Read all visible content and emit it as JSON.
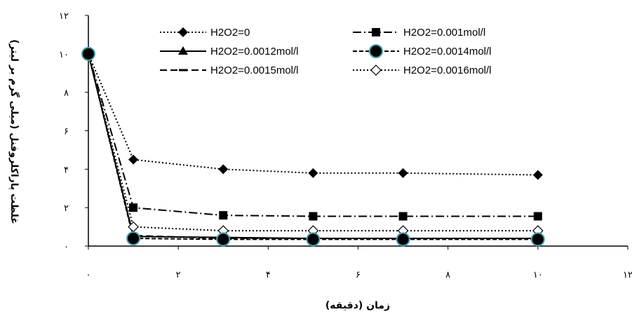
{
  "chart_data": {
    "type": "line",
    "title": "",
    "xlabel": "زمان (دقیقه)",
    "ylabel": "غلظت پاراکلروفنل (میلی گرم بر لیتر)",
    "xlim": [
      0,
      12
    ],
    "ylim": [
      0,
      12
    ],
    "xticks": [
      0,
      2,
      4,
      6,
      8,
      10,
      12
    ],
    "yticks": [
      0,
      2,
      4,
      6,
      8,
      10,
      12
    ],
    "xtick_labels": [
      "۰",
      "۲",
      "۴",
      "۶",
      "۸",
      "۱۰",
      "۱۲"
    ],
    "ytick_labels": [
      "۰",
      "۲",
      "۴",
      "۶",
      "۸",
      "۱۰",
      "۱۲"
    ],
    "grid": false,
    "legend_position": "top",
    "x": [
      0,
      1,
      3,
      5,
      7,
      10
    ],
    "series": [
      {
        "name": "H2O2=0",
        "values": [
          10,
          4.5,
          4.0,
          3.8,
          3.8,
          3.7
        ],
        "color": "#000000",
        "dash": "2 3",
        "marker": "diamond-filled"
      },
      {
        "name": "H2O2=0.001mol/l",
        "values": [
          10,
          2.0,
          1.6,
          1.55,
          1.55,
          1.55
        ],
        "color": "#000000",
        "dash": "12 4 2 4",
        "marker": "square-filled"
      },
      {
        "name": "H2O2=0.0012mol/l",
        "values": [
          10,
          0.5,
          0.45,
          0.4,
          0.4,
          0.4
        ],
        "color": "#000000",
        "dash": "",
        "marker": "triangle-filled"
      },
      {
        "name": "H2O2=0.0014mol/l",
        "values": [
          10,
          0.4,
          0.35,
          0.35,
          0.35,
          0.35
        ],
        "color": "#000000",
        "dash": "6 3",
        "marker": "circle-filled-cyan"
      },
      {
        "name": "H2O2=0.0015mol/l",
        "values": [
          10,
          0.55,
          0.4,
          0.4,
          0.4,
          0.4
        ],
        "color": "#000000",
        "dash": "10 5",
        "marker": "dash"
      },
      {
        "name": "H2O2=0.0016mol/l",
        "values": [
          10,
          1.0,
          0.8,
          0.8,
          0.8,
          0.8
        ],
        "color": "#000000",
        "dash": "2 3",
        "marker": "diamond-open"
      }
    ]
  }
}
